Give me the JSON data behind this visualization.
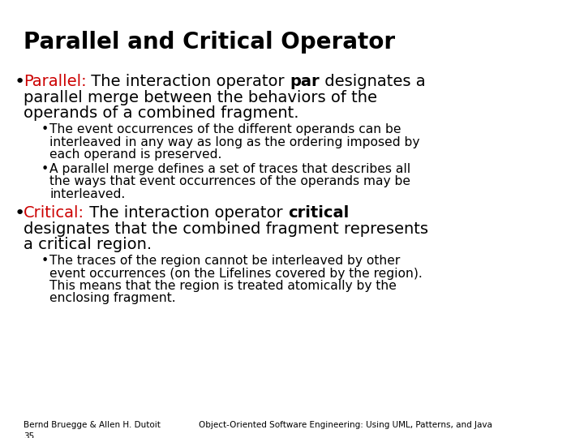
{
  "title": "Parallel and Critical Operator",
  "background_color": "#ffffff",
  "title_color": "#000000",
  "title_fontsize": 20,
  "red_color": "#cc0000",
  "black_color": "#000000",
  "footer_left_line1": "Bernd Bruegge & Allen H. Dutoit",
  "footer_left_line2": "35",
  "footer_right": "Object-Oriented Software Engineering: Using UML, Patterns, and Java",
  "footer_fontsize": 7.5,
  "main_fontsize": 14.0,
  "sub_fontsize": 11.2,
  "bullet1_lines": [
    [
      [
        "Parallel:",
        "red",
        false
      ],
      [
        " The interaction operator ",
        "black",
        false
      ],
      [
        "par",
        "black",
        true
      ],
      [
        " designates a",
        "black",
        false
      ]
    ],
    [
      [
        "parallel merge between the behaviors of the",
        "black",
        false
      ]
    ],
    [
      [
        "operands of a combined fragment.",
        "black",
        false
      ]
    ]
  ],
  "sub1_lines": [
    [
      [
        "The event occurrences of the different operands can be",
        "black",
        false
      ]
    ],
    [
      [
        "interleaved in any way as long as the ordering imposed by",
        "black",
        false
      ]
    ],
    [
      [
        "each operand is preserved.",
        "black",
        false
      ]
    ]
  ],
  "sub2_lines": [
    [
      [
        "A parallel merge defines a set of traces that describes all",
        "black",
        false
      ]
    ],
    [
      [
        "the ways that event occurrences of the operands may be",
        "black",
        false
      ]
    ],
    [
      [
        "interleaved.",
        "black",
        false
      ]
    ]
  ],
  "bullet2_lines": [
    [
      [
        "Critical:",
        "red",
        false
      ],
      [
        " The interaction operator ",
        "black",
        false
      ],
      [
        "critical",
        "black",
        true
      ]
    ],
    [
      [
        "designates that the combined fragment represents",
        "black",
        false
      ]
    ],
    [
      [
        "a critical region.",
        "black",
        false
      ]
    ]
  ],
  "sub3_lines": [
    [
      [
        "The traces of the region cannot be interleaved by other",
        "black",
        false
      ]
    ],
    [
      [
        "event occurrences (on the Lifelines covered by the region).",
        "black",
        false
      ]
    ],
    [
      [
        "This means that the region is treated atomically by the",
        "black",
        false
      ]
    ],
    [
      [
        "enclosing fragment.",
        "black",
        false
      ]
    ]
  ]
}
